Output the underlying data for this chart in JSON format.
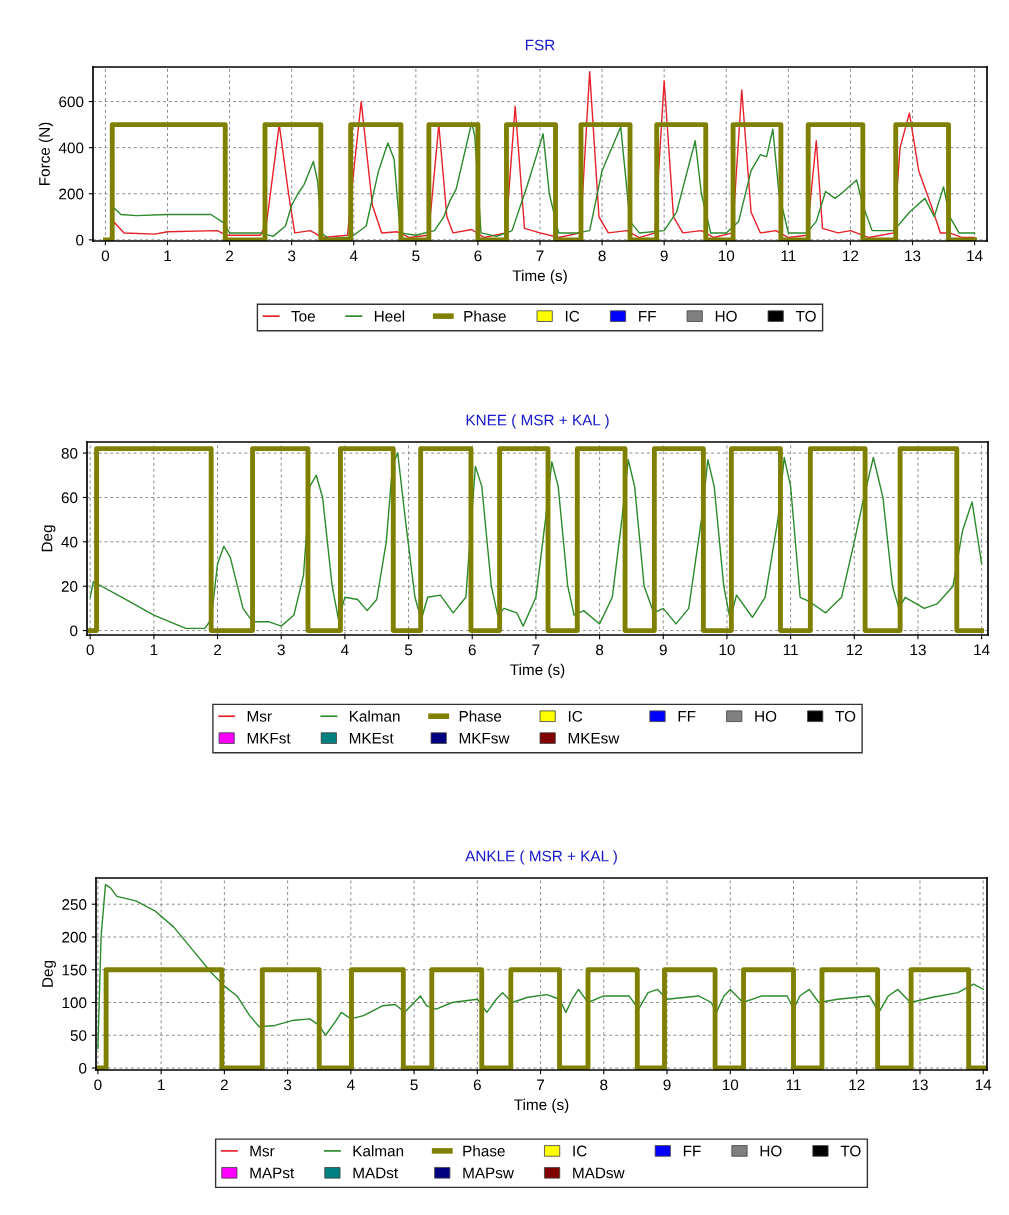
{
  "chart_data": [
    {
      "type": "line",
      "title": "FSR",
      "xlabel": "Time (s)",
      "ylabel": "Force (N)",
      "xlim": [
        -0.2,
        14.2
      ],
      "ylim": [
        -5,
        750
      ],
      "xticks": [
        0,
        1,
        2,
        3,
        4,
        5,
        6,
        7,
        8,
        9,
        10,
        11,
        12,
        13,
        14
      ],
      "yticks": [
        0,
        200,
        400,
        600
      ],
      "grid": true,
      "legend": "bottom",
      "series": [
        {
          "name": "Toe",
          "color": "#e8202a",
          "x": [
            0.1,
            0.13,
            0.3,
            0.8,
            1.0,
            1.8,
            1.95,
            2.5,
            2.6,
            2.8,
            2.95,
            3.05,
            3.3,
            3.5,
            3.9,
            4.0,
            4.12,
            4.3,
            4.45,
            4.7,
            4.9,
            5.2,
            5.25,
            5.37,
            5.5,
            5.6,
            5.9,
            6.1,
            6.45,
            6.6,
            6.75,
            7.0,
            7.3,
            7.65,
            7.8,
            7.95,
            8.1,
            8.4,
            8.6,
            8.85,
            9.0,
            9.15,
            9.3,
            9.6,
            9.8,
            10.1,
            10.25,
            10.4,
            10.55,
            10.8,
            11.0,
            11.3,
            11.45,
            11.55,
            11.8,
            12.0,
            12.3,
            12.7,
            12.8,
            12.95,
            13.1,
            13.3,
            13.45,
            13.6,
            13.8,
            14.0
          ],
          "values": [
            0,
            80,
            30,
            25,
            35,
            40,
            20,
            20,
            80,
            500,
            200,
            30,
            40,
            10,
            20,
            300,
            600,
            150,
            30,
            35,
            10,
            20,
            150,
            500,
            100,
            30,
            45,
            10,
            30,
            580,
            50,
            30,
            10,
            30,
            730,
            100,
            30,
            40,
            10,
            30,
            690,
            100,
            30,
            40,
            10,
            30,
            650,
            120,
            30,
            40,
            10,
            20,
            430,
            50,
            30,
            40,
            10,
            30,
            400,
            550,
            300,
            150,
            30,
            30,
            10,
            10
          ]
        },
        {
          "name": "Heel",
          "color": "#2a8a2a",
          "x": [
            0.1,
            0.13,
            0.25,
            0.5,
            1.0,
            1.7,
            1.9,
            2.0,
            2.5,
            2.7,
            2.9,
            3.0,
            3.1,
            3.2,
            3.35,
            3.42,
            3.48,
            3.6,
            3.9,
            4.0,
            4.2,
            4.4,
            4.55,
            4.65,
            4.75,
            5.0,
            5.3,
            5.45,
            5.55,
            5.65,
            5.9,
            5.95,
            6.05,
            6.3,
            6.55,
            6.8,
            7.05,
            7.15,
            7.3,
            7.6,
            7.8,
            8.0,
            8.3,
            8.45,
            8.6,
            9.0,
            9.2,
            9.5,
            9.6,
            9.75,
            10.0,
            10.2,
            10.4,
            10.55,
            10.65,
            10.75,
            10.85,
            11.0,
            11.3,
            11.45,
            11.6,
            11.75,
            11.85,
            12.1,
            12.2,
            12.35,
            12.7,
            12.95,
            13.2,
            13.35,
            13.5,
            13.6,
            13.75,
            14.0
          ],
          "values": [
            0,
            140,
            110,
            105,
            110,
            110,
            75,
            30,
            30,
            15,
            60,
            150,
            200,
            240,
            340,
            250,
            30,
            5,
            10,
            20,
            60,
            300,
            420,
            350,
            30,
            20,
            40,
            100,
            170,
            220,
            510,
            450,
            30,
            15,
            40,
            240,
            460,
            200,
            30,
            30,
            40,
            300,
            490,
            80,
            30,
            40,
            120,
            430,
            200,
            30,
            30,
            80,
            300,
            370,
            360,
            480,
            200,
            30,
            30,
            80,
            210,
            180,
            200,
            260,
            150,
            40,
            40,
            120,
            180,
            100,
            230,
            100,
            30,
            30
          ]
        },
        {
          "name": "Phase",
          "color": "#808000",
          "type": "step",
          "x": [
            0,
            0.11,
            1.93,
            2.57,
            3.47,
            3.95,
            4.76,
            5.21,
            6.0,
            6.46,
            7.25,
            7.66,
            8.45,
            8.88,
            9.67,
            10.11,
            10.88,
            11.32,
            12.2,
            12.73,
            13.58,
            14.0
          ],
          "values": [
            0,
            500,
            0,
            500,
            0,
            500,
            0,
            500,
            0,
            500,
            0,
            500,
            0,
            500,
            0,
            500,
            0,
            500,
            0,
            500,
            0,
            0
          ]
        },
        {
          "name": "IC",
          "color": "#ffff00",
          "type": "bar"
        },
        {
          "name": "FF",
          "color": "#0000ff",
          "type": "bar"
        },
        {
          "name": "HO",
          "color": "#808080",
          "type": "bar"
        },
        {
          "name": "TO",
          "color": "#000000",
          "type": "bar"
        }
      ]
    },
    {
      "type": "line",
      "title": "KNEE ( MSR + KAL )",
      "xlabel": "Time (s)",
      "ylabel": "Deg",
      "xlim": [
        -0.05,
        14.1
      ],
      "ylim": [
        -2,
        85
      ],
      "xticks": [
        0,
        1,
        2,
        3,
        4,
        5,
        6,
        7,
        8,
        9,
        10,
        11,
        12,
        13,
        14
      ],
      "yticks": [
        0,
        20,
        40,
        60,
        80
      ],
      "grid": true,
      "legend": "bottom",
      "series": [
        {
          "name": "Msr",
          "color": "#e8202a"
        },
        {
          "name": "Kalman",
          "color": "#2a8a2a",
          "x": [
            0,
            0.05,
            0.5,
            1.0,
            1.5,
            1.8,
            1.9,
            2.0,
            2.1,
            2.2,
            2.4,
            2.55,
            2.8,
            3.0,
            3.2,
            3.35,
            3.45,
            3.55,
            3.65,
            3.8,
            3.9,
            4.0,
            4.2,
            4.35,
            4.5,
            4.65,
            4.75,
            4.83,
            4.95,
            5.1,
            5.2,
            5.3,
            5.5,
            5.7,
            5.9,
            6.0,
            6.05,
            6.15,
            6.3,
            6.4,
            6.5,
            6.7,
            6.8,
            7.0,
            7.15,
            7.25,
            7.35,
            7.5,
            7.6,
            7.75,
            8.0,
            8.2,
            8.35,
            8.45,
            8.55,
            8.7,
            8.85,
            9.0,
            9.2,
            9.4,
            9.6,
            9.7,
            9.8,
            9.95,
            10.05,
            10.15,
            10.4,
            10.6,
            10.8,
            10.9,
            11.0,
            11.15,
            11.3,
            11.55,
            11.8,
            12.0,
            12.15,
            12.3,
            12.45,
            12.6,
            12.7,
            12.8,
            13.1,
            13.3,
            13.55,
            13.7,
            13.85,
            14.0
          ],
          "values": [
            15,
            22,
            15,
            7,
            1,
            1,
            5,
            30,
            38,
            33,
            10,
            4,
            4,
            2,
            7,
            25,
            65,
            70,
            60,
            20,
            5,
            15,
            14,
            9,
            14,
            40,
            75,
            80,
            50,
            15,
            5,
            15,
            16,
            8,
            15,
            55,
            74,
            65,
            20,
            7,
            10,
            8,
            2,
            15,
            50,
            76,
            65,
            20,
            7,
            9,
            3,
            15,
            50,
            77,
            65,
            20,
            8,
            10,
            3,
            10,
            50,
            77,
            65,
            20,
            5,
            16,
            6,
            15,
            50,
            78,
            65,
            15,
            13,
            8,
            15,
            40,
            60,
            78,
            60,
            20,
            10,
            15,
            10,
            12,
            20,
            45,
            58,
            30
          ]
        },
        {
          "name": "Phase",
          "color": "#808000",
          "type": "step",
          "x": [
            0,
            0.1,
            1.9,
            2.55,
            3.42,
            3.93,
            4.76,
            5.19,
            5.98,
            6.43,
            7.19,
            7.65,
            8.4,
            8.86,
            9.63,
            10.07,
            10.84,
            11.31,
            12.17,
            12.72,
            13.61,
            14.0
          ],
          "values": [
            0,
            82,
            0,
            82,
            0,
            82,
            0,
            82,
            0,
            82,
            0,
            82,
            0,
            82,
            0,
            82,
            0,
            82,
            0,
            82,
            0,
            0
          ]
        },
        {
          "name": "IC",
          "color": "#ffff00",
          "type": "bar"
        },
        {
          "name": "FF",
          "color": "#0000ff",
          "type": "bar"
        },
        {
          "name": "HO",
          "color": "#808080",
          "type": "bar"
        },
        {
          "name": "TO",
          "color": "#000000",
          "type": "bar"
        },
        {
          "name": "MKFst",
          "color": "#ff00ff",
          "type": "bar"
        },
        {
          "name": "MKEst",
          "color": "#008080",
          "type": "bar"
        },
        {
          "name": "MKFsw",
          "color": "#000080",
          "type": "bar"
        },
        {
          "name": "MKEsw",
          "color": "#800000",
          "type": "bar"
        }
      ]
    },
    {
      "type": "line",
      "title": "ANKLE ( MSR + KAL )",
      "xlabel": "Time (s)",
      "ylabel": "Deg",
      "xlim": [
        -0.03,
        14.06
      ],
      "ylim": [
        -3,
        290
      ],
      "xticks": [
        0,
        1,
        2,
        3,
        4,
        5,
        6,
        7,
        8,
        9,
        10,
        11,
        12,
        13,
        14
      ],
      "yticks": [
        0,
        50,
        100,
        150,
        200,
        250
      ],
      "grid": true,
      "legend": "bottom",
      "series": [
        {
          "name": "Msr",
          "color": "#e8202a"
        },
        {
          "name": "Kalman",
          "color": "#2a8a2a",
          "x": [
            0,
            0.05,
            0.12,
            0.2,
            0.3,
            0.6,
            0.9,
            1.2,
            1.5,
            1.8,
            2.0,
            2.2,
            2.4,
            2.55,
            2.8,
            3.1,
            3.35,
            3.5,
            3.6,
            3.75,
            3.85,
            4.0,
            4.2,
            4.5,
            4.7,
            4.85,
            5.0,
            5.1,
            5.2,
            5.35,
            5.6,
            6.0,
            6.15,
            6.3,
            6.4,
            6.55,
            6.8,
            7.1,
            7.3,
            7.4,
            7.5,
            7.6,
            7.75,
            8.0,
            8.4,
            8.55,
            8.7,
            8.85,
            9.0,
            9.5,
            9.7,
            9.78,
            9.9,
            10.0,
            10.2,
            10.5,
            10.9,
            11.0,
            11.1,
            11.25,
            11.4,
            11.7,
            12.2,
            12.35,
            12.5,
            12.65,
            12.85,
            13.2,
            13.6,
            13.85,
            14.0
          ],
          "values": [
            30,
            200,
            280,
            275,
            262,
            255,
            240,
            215,
            180,
            145,
            125,
            110,
            80,
            63,
            65,
            73,
            75,
            65,
            50,
            70,
            85,
            75,
            80,
            95,
            97,
            85,
            100,
            110,
            95,
            90,
            100,
            105,
            85,
            105,
            115,
            100,
            108,
            112,
            105,
            85,
            105,
            120,
            100,
            110,
            110,
            90,
            115,
            120,
            105,
            110,
            100,
            85,
            110,
            120,
            100,
            110,
            110,
            90,
            110,
            120,
            100,
            105,
            110,
            85,
            110,
            120,
            100,
            108,
            115,
            128,
            120
          ]
        },
        {
          "name": "Phase",
          "color": "#808000",
          "type": "step",
          "x": [
            0,
            0.13,
            1.96,
            2.6,
            3.5,
            4.01,
            4.83,
            5.28,
            6.07,
            6.53,
            7.3,
            7.75,
            8.53,
            8.96,
            9.76,
            10.21,
            11.0,
            11.45,
            12.33,
            12.86,
            13.77,
            14.06
          ],
          "values": [
            0,
            150,
            0,
            150,
            0,
            150,
            0,
            150,
            0,
            150,
            0,
            150,
            0,
            150,
            0,
            150,
            0,
            150,
            0,
            150,
            0,
            0
          ]
        },
        {
          "name": "IC",
          "color": "#ffff00",
          "type": "bar"
        },
        {
          "name": "FF",
          "color": "#0000ff",
          "type": "bar"
        },
        {
          "name": "HO",
          "color": "#808080",
          "type": "bar"
        },
        {
          "name": "TO",
          "color": "#000000",
          "type": "bar"
        },
        {
          "name": "MAPst",
          "color": "#ff00ff",
          "type": "bar"
        },
        {
          "name": "MADst",
          "color": "#008080",
          "type": "bar"
        },
        {
          "name": "MAPsw",
          "color": "#000080",
          "type": "bar"
        },
        {
          "name": "MADsw",
          "color": "#800000",
          "type": "bar"
        }
      ]
    }
  ]
}
